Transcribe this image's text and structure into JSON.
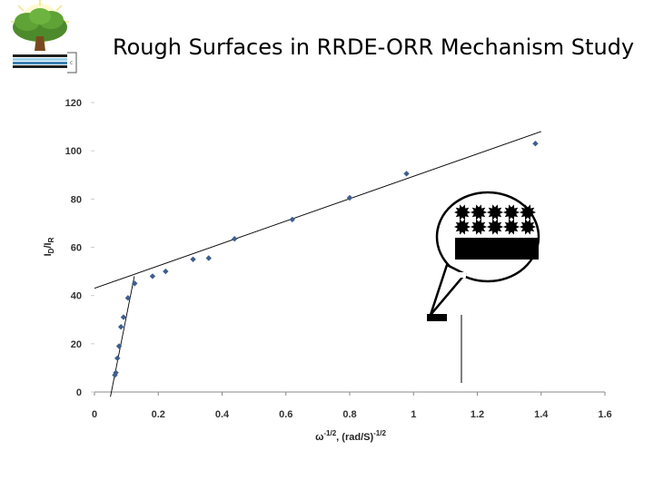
{
  "slide": {
    "title": "Rough Surfaces in RRDE-ORR Mechanism Study"
  },
  "logo": {
    "icon": "tree-logo-icon"
  },
  "colors": {
    "marker": "#3d5f8e",
    "fit_line": "#000000",
    "axis": "#888888",
    "logo_tree": "#4d8a2c",
    "logo_trunk": "#7a4a1e"
  },
  "chart_data": {
    "type": "scatter",
    "title": "",
    "xlabel_main": "ω",
    "xlabel_sup1": "-1/2",
    "xlabel_mid": ", (rad/S)",
    "xlabel_sup2": "-1/2",
    "ylabel_main": "I",
    "ylabel_sub1": "D",
    "ylabel_mid": "/I",
    "ylabel_sub2": "R",
    "xlim": [
      0,
      1.6
    ],
    "ylim": [
      0,
      120
    ],
    "xticks": [
      "0",
      "0.2",
      "0.4",
      "0.6",
      "0.8",
      "1",
      "1.2",
      "1.4",
      "1.6"
    ],
    "yticks": [
      "0",
      "20",
      "40",
      "60",
      "80",
      "100",
      "120"
    ],
    "grid": false,
    "series": [
      {
        "x": [
          0.064,
          0.067,
          0.072,
          0.077,
          0.083,
          0.091,
          0.105,
          0.126,
          0.182,
          0.223,
          0.309,
          0.358,
          0.439,
          0.62,
          0.8,
          0.978,
          1.382
        ],
        "y": [
          7,
          8,
          14,
          19,
          27,
          31,
          39,
          45,
          48,
          50,
          55,
          55.5,
          63.5,
          71.5,
          80.5,
          90.5,
          103
        ]
      }
    ],
    "fits": [
      {
        "x": [
          0.05,
          0.125
        ],
        "y": [
          -2,
          48
        ]
      },
      {
        "x": [
          0.0,
          1.4
        ],
        "y": [
          43,
          108
        ]
      }
    ]
  },
  "inset": {
    "icon": "rough-electrode-icon"
  }
}
